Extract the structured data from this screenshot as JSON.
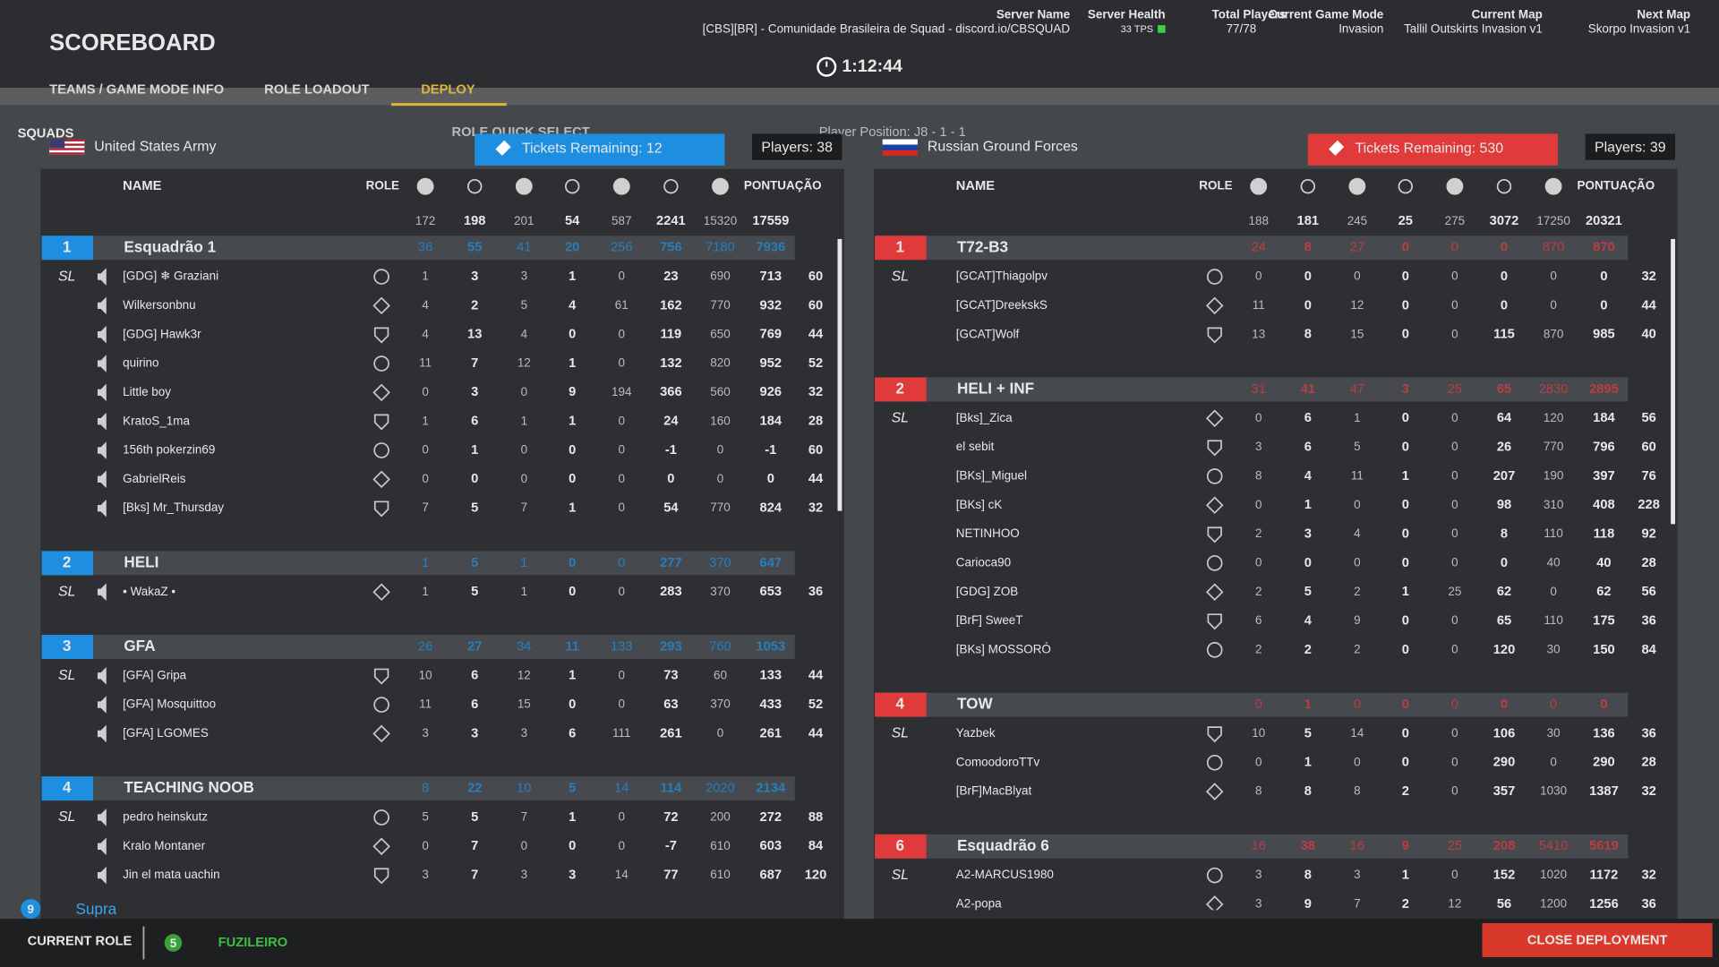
{
  "header": {
    "title": "SCOREBOARD",
    "timer": "1:12:44",
    "info": [
      {
        "label": "Server Name",
        "value": "[CBS][BR] - Comunidade Brasileira de Squad - discord.io/CBSQUAD"
      },
      {
        "label": "Server Health",
        "value": "33 TPS"
      },
      {
        "label": "Total Players",
        "value": "77/78"
      },
      {
        "label": "Current Game Mode",
        "value": "Invasion"
      },
      {
        "label": "Current Map",
        "value": "Tallil Outskirts Invasion v1"
      },
      {
        "label": "Next Map",
        "value": "Skorpo Invasion v1"
      }
    ],
    "tabs": [
      "TEAMS / GAME MODE INFO",
      "ROLE LOADOUT",
      "DEPLOY"
    ]
  },
  "sub": {
    "squads": "SQUADS",
    "quick_select": "ROLE QUICK SELECT",
    "position": "Player Position: J8 - 1 - 1"
  },
  "columns": {
    "name": "NAME",
    "role": "ROLE",
    "score": "PONTUAÇÃO",
    "sl": "SL"
  },
  "teams": [
    {
      "name": "United States Army",
      "color": "#1e8fe0",
      "tickets": "Tickets Remaining: 12",
      "players": "Players: 38",
      "totals": [
        172,
        198,
        201,
        54,
        587,
        2241,
        15320,
        17559
      ],
      "squads": [
        {
          "number": "1",
          "name": "Esquadrão 1",
          "stats": [
            36,
            55,
            41,
            20,
            256,
            756,
            7180,
            7936
          ],
          "members": [
            {
              "name": "[GDG] ❄ Graziani",
              "sl": true,
              "stats": [
                1,
                3,
                3,
                1,
                0,
                23,
                690,
                713,
                60
              ]
            },
            {
              "name": "Wilkersonbnu",
              "stats": [
                4,
                2,
                5,
                4,
                61,
                162,
                770,
                932,
                60
              ]
            },
            {
              "name": "[GDG] Hawk3r",
              "stats": [
                4,
                13,
                4,
                0,
                0,
                119,
                650,
                769,
                44
              ]
            },
            {
              "name": "quirino",
              "stats": [
                11,
                7,
                12,
                1,
                0,
                132,
                820,
                952,
                52
              ]
            },
            {
              "name": "Little boy",
              "stats": [
                0,
                3,
                0,
                9,
                194,
                366,
                560,
                926,
                32
              ]
            },
            {
              "name": "KratoS_1ma",
              "stats": [
                1,
                6,
                1,
                1,
                0,
                24,
                160,
                184,
                28
              ]
            },
            {
              "name": "156th pokerzin69",
              "stats": [
                0,
                1,
                0,
                0,
                0,
                -1,
                0,
                -1,
                60
              ]
            },
            {
              "name": "GabrielReis",
              "stats": [
                0,
                0,
                0,
                0,
                0,
                0,
                0,
                0,
                44
              ]
            },
            {
              "name": "[Bks] Mr_Thursday",
              "stats": [
                7,
                5,
                7,
                1,
                0,
                54,
                770,
                824,
                32
              ]
            }
          ]
        },
        {
          "number": "2",
          "name": "HELI",
          "stats": [
            1,
            5,
            1,
            0,
            0,
            277,
            370,
            647
          ],
          "members": [
            {
              "name": "• WakaZ •",
              "sl": true,
              "stats": [
                1,
                5,
                1,
                0,
                0,
                283,
                370,
                653,
                36
              ]
            }
          ]
        },
        {
          "number": "3",
          "name": "GFA",
          "stats": [
            26,
            27,
            34,
            11,
            133,
            293,
            760,
            1053
          ],
          "members": [
            {
              "name": "[GFA] Gripa",
              "sl": true,
              "stats": [
                10,
                6,
                12,
                1,
                0,
                73,
                60,
                133,
                44
              ]
            },
            {
              "name": "[GFA] Mosquittoo",
              "stats": [
                11,
                6,
                15,
                0,
                0,
                63,
                370,
                433,
                52
              ]
            },
            {
              "name": "[GFA] LGOMES",
              "stats": [
                3,
                3,
                3,
                6,
                111,
                261,
                0,
                261,
                44
              ]
            }
          ]
        },
        {
          "number": "4",
          "name": "TEACHING NOOB",
          "stats": [
            8,
            22,
            10,
            5,
            14,
            114,
            2020,
            2134
          ],
          "members": [
            {
              "name": "pedro heinskutz",
              "sl": true,
              "stats": [
                5,
                5,
                7,
                1,
                0,
                72,
                200,
                272,
                88
              ]
            },
            {
              "name": "Kralo Montaner",
              "stats": [
                0,
                7,
                0,
                0,
                0,
                -7,
                610,
                603,
                84
              ]
            },
            {
              "name": "Jin el mata uachin",
              "stats": [
                3,
                7,
                3,
                3,
                14,
                77,
                610,
                687,
                120
              ]
            }
          ]
        }
      ]
    },
    {
      "name": "Russian Ground Forces",
      "color": "#e03a3a",
      "tickets": "Tickets Remaining: 530",
      "players": "Players: 39",
      "totals": [
        188,
        181,
        245,
        25,
        275,
        3072,
        17250,
        20321
      ],
      "squads": [
        {
          "number": "1",
          "name": "T72-B3",
          "stats": [
            24,
            8,
            27,
            0,
            0,
            0,
            870,
            870
          ],
          "members": [
            {
              "name": "[GCAT]Thiagolpv",
              "sl": true,
              "stats": [
                0,
                0,
                0,
                0,
                0,
                0,
                0,
                0,
                32
              ]
            },
            {
              "name": "[GCAT]DreekskS",
              "stats": [
                11,
                0,
                12,
                0,
                0,
                0,
                0,
                0,
                44
              ]
            },
            {
              "name": "[GCAT]Wolf",
              "stats": [
                13,
                8,
                15,
                0,
                0,
                115,
                870,
                985,
                40
              ]
            }
          ]
        },
        {
          "number": "2",
          "name": "HELI + INF",
          "stats": [
            31,
            41,
            47,
            3,
            25,
            65,
            2830,
            2895
          ],
          "members": [
            {
              "name": "[Bks]_Zica",
              "sl": true,
              "stats": [
                0,
                6,
                1,
                0,
                0,
                64,
                120,
                184,
                56
              ]
            },
            {
              "name": "el sebit",
              "stats": [
                3,
                6,
                5,
                0,
                0,
                26,
                770,
                796,
                60
              ]
            },
            {
              "name": "[BKs]_Miguel",
              "stats": [
                8,
                4,
                11,
                1,
                0,
                207,
                190,
                397,
                76
              ]
            },
            {
              "name": "[BKs] cK",
              "stats": [
                0,
                1,
                0,
                0,
                0,
                98,
                310,
                408,
                228
              ]
            },
            {
              "name": "NETINHOO",
              "stats": [
                2,
                3,
                4,
                0,
                0,
                8,
                110,
                118,
                92
              ]
            },
            {
              "name": "Carioca90",
              "stats": [
                0,
                0,
                0,
                0,
                0,
                0,
                40,
                40,
                28
              ]
            },
            {
              "name": "[GDG] ZOB",
              "stats": [
                2,
                5,
                2,
                1,
                25,
                62,
                0,
                62,
                56
              ]
            },
            {
              "name": "[BrF] SweeT",
              "stats": [
                6,
                4,
                9,
                0,
                0,
                65,
                110,
                175,
                36
              ]
            },
            {
              "name": "[BKs] MOSSORÓ",
              "stats": [
                2,
                2,
                2,
                0,
                0,
                120,
                30,
                150,
                84
              ]
            }
          ]
        },
        {
          "number": "4",
          "name": "TOW",
          "stats": [
            0,
            1,
            0,
            0,
            0,
            0,
            0,
            0
          ],
          "members": [
            {
              "name": "Yazbek",
              "sl": true,
              "stats": [
                10,
                5,
                14,
                0,
                0,
                106,
                30,
                136,
                36
              ]
            },
            {
              "name": "ComoodoroTTv",
              "stats": [
                0,
                1,
                0,
                0,
                0,
                290,
                0,
                290,
                28
              ]
            },
            {
              "name": "[BrF]MacBlyat",
              "stats": [
                8,
                8,
                8,
                2,
                0,
                357,
                1030,
                1387,
                32
              ]
            }
          ]
        },
        {
          "number": "6",
          "name": "Esquadrão 6",
          "stats": [
            16,
            38,
            16,
            9,
            25,
            208,
            5410,
            5619
          ],
          "members": [
            {
              "name": "A2-MARCUS1980",
              "sl": true,
              "stats": [
                3,
                8,
                3,
                1,
                0,
                152,
                1020,
                1172,
                32
              ]
            },
            {
              "name": "A2-popa",
              "stats": [
                3,
                9,
                7,
                2,
                12,
                56,
                1200,
                1256,
                36
              ]
            }
          ]
        }
      ]
    }
  ],
  "footer": {
    "squad_number": "9",
    "squad_name": "Supra",
    "current_role": "CURRENT ROLE",
    "role_count": "5",
    "role_name": "FUZILEIRO",
    "close": "CLOSE DEPLOYMENT"
  }
}
